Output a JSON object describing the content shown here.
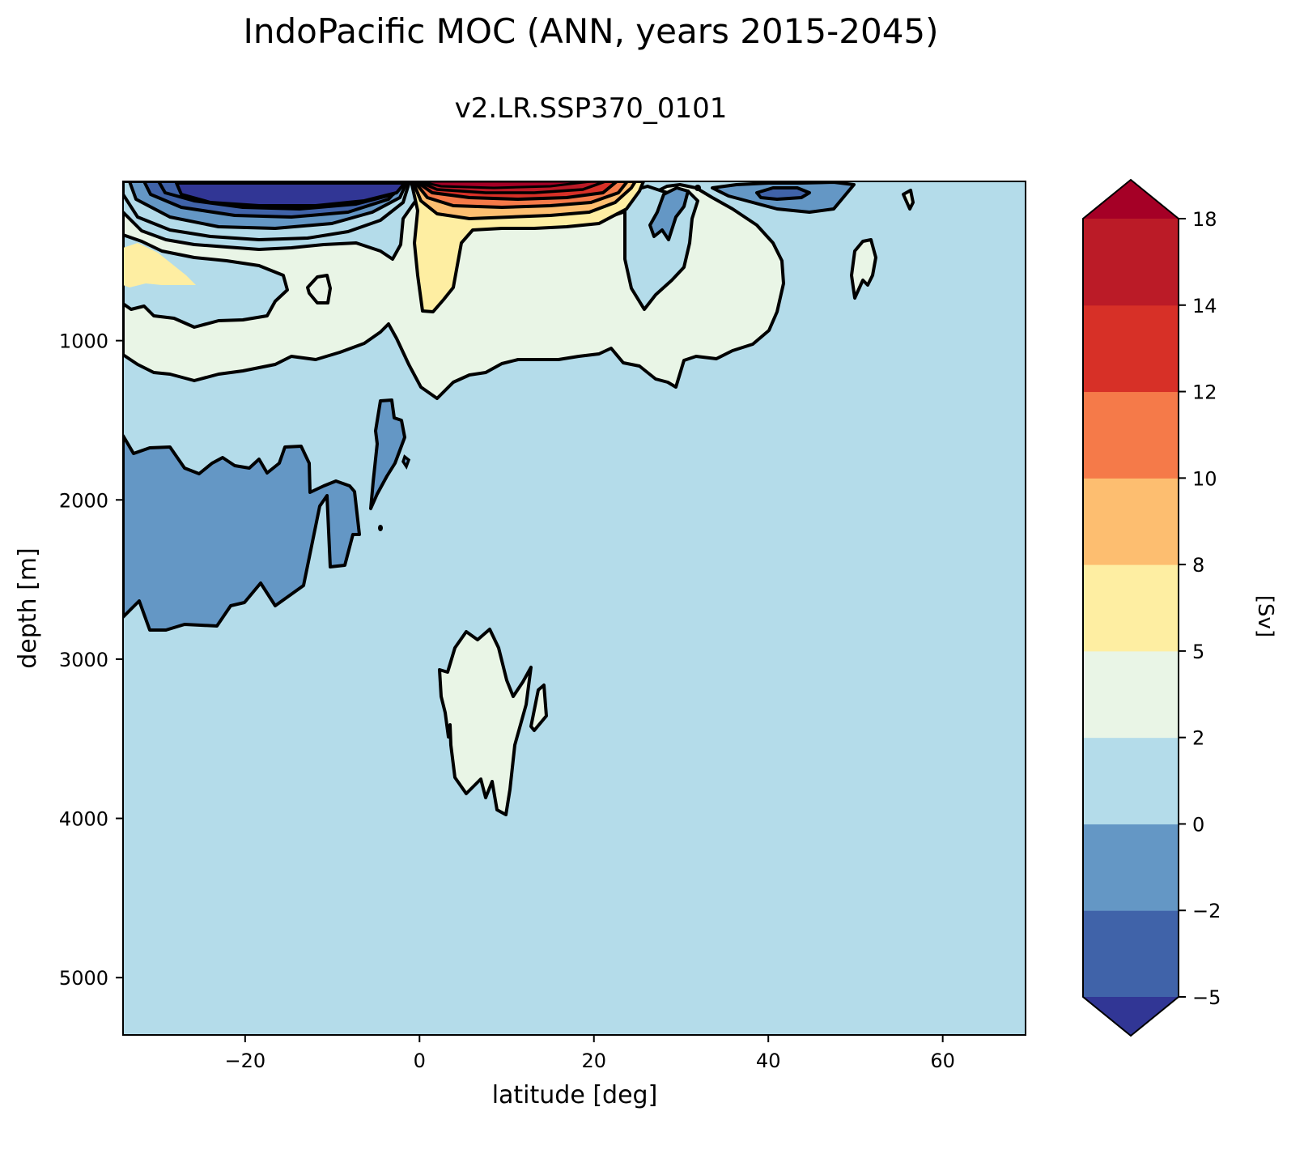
{
  "chart_data": {
    "type": "contour",
    "title": "IndoPacific MOC (ANN, years 2015-2045)",
    "subtitle": "v2.LR.SSP370_0101",
    "xlabel": "latitude [deg]",
    "ylabel": "depth [m]",
    "xlim": [
      -34,
      69.5
    ],
    "ylim": [
      5360,
      0
    ],
    "x_ticks": [
      -20,
      0,
      20,
      40,
      60
    ],
    "x_tick_labels": [
      "−20",
      "0",
      "20",
      "40",
      "60"
    ],
    "y_ticks": [
      1000,
      2000,
      3000,
      4000,
      5000
    ],
    "y_tick_labels": [
      "1000",
      "2000",
      "3000",
      "4000",
      "5000"
    ],
    "background_level": "0 to 2",
    "colorbar": {
      "label": "[Sv]",
      "levels": [
        -5,
        -2,
        0,
        2,
        5,
        8,
        10,
        12,
        14,
        18
      ],
      "level_labels": [
        "−5",
        "−2",
        "0",
        "2",
        "5",
        "8",
        "10",
        "12",
        "14",
        "18"
      ],
      "colors": [
        "#313695",
        "#4063a9",
        "#6497c5",
        "#b4dcea",
        "#e9f5e6",
        "#feeea2",
        "#fdbe70",
        "#f57a49",
        "#d73027",
        "#bb1b27",
        "#a50026"
      ],
      "extend": "both"
    },
    "regions": [
      {
        "name": "upper-south-negative-cell",
        "level": "below -5",
        "lat": [
          -28,
          -2
        ],
        "depth": [
          0,
          230
        ]
      },
      {
        "name": "north-positive-cell",
        "level": "above 14",
        "lat": [
          0,
          26
        ],
        "depth": [
          0,
          320
        ]
      },
      {
        "name": "south-intermediate-positive",
        "level": "2 to 5",
        "lat": [
          -34,
          -2
        ],
        "depth": [
          250,
          1300
        ]
      },
      {
        "name": "north-intermediate-positive",
        "level": "2 to 5",
        "lat": [
          -2,
          52
        ],
        "depth": [
          150,
          1380
        ]
      },
      {
        "name": "south-deep-negative-cell",
        "level": "-2 to 0",
        "lat": [
          -34,
          -2
        ],
        "depth": [
          1400,
          2850
        ]
      },
      {
        "name": "deep-tropical-positive",
        "level": "2 to 5",
        "lat": [
          2,
          14
        ],
        "depth": [
          2850,
          4000
        ]
      },
      {
        "name": "north-surface-negative",
        "level": "-2 to 0",
        "lat": [
          27,
          50
        ],
        "depth": [
          0,
          820
        ]
      }
    ]
  }
}
